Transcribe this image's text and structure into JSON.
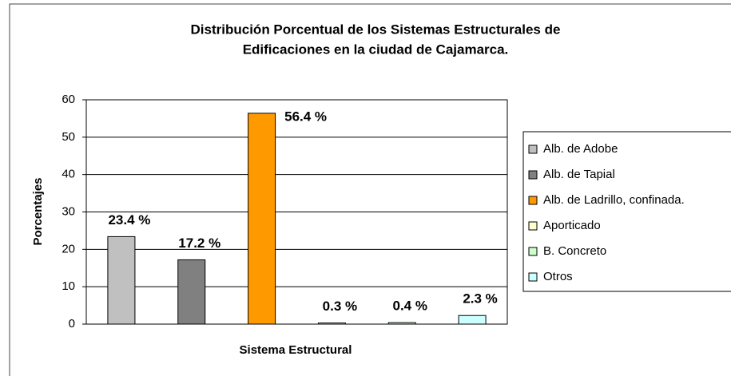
{
  "chart_data": {
    "type": "bar",
    "title": [
      "Distribución Porcentual de los Sistemas Estructurales de",
      "Edificaciones en la ciudad de Cajamarca."
    ],
    "x_label": "Sistema Estructural",
    "y_label": "Porcentajes",
    "categories": [
      "Alb. de Adobe",
      "Alb. de Tapial",
      "Alb. de Ladrillo, confinada.",
      "Aporticado",
      "B. Concreto",
      "Otros"
    ],
    "values": [
      23.4,
      17.2,
      56.4,
      0.3,
      0.4,
      2.3
    ],
    "value_labels": [
      "23.4 %",
      "17.2 %",
      "56.4 %",
      "0.3 %",
      "0.4 %",
      "2.3 %"
    ],
    "colors": [
      "#c0c0c0",
      "#808080",
      "#ff9900",
      "#ffffcc",
      "#ccffcc",
      "#ccffff"
    ],
    "ylim": [
      0,
      60
    ],
    "yticks": [
      0,
      10,
      20,
      30,
      40,
      50,
      60
    ],
    "grid": true,
    "legend": "right"
  }
}
